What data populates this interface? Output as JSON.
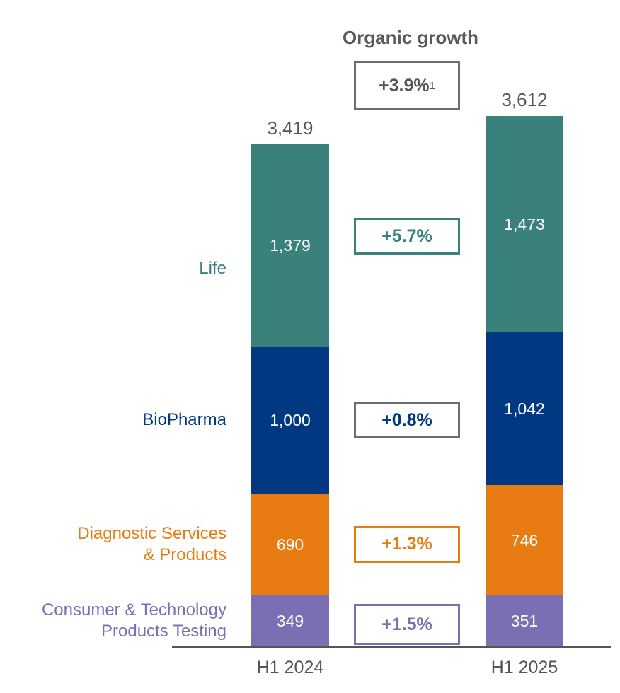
{
  "chart_data": {
    "type": "bar",
    "stacked": true,
    "title": "Organic growth",
    "categories": [
      "H1 2024",
      "H1 2025"
    ],
    "totals": [
      3419,
      3612
    ],
    "totals_labels": [
      "3,419",
      "3,612"
    ],
    "series": [
      {
        "name": "Consumer & Technology Products Testing",
        "label_lines": [
          "Consumer & Technology",
          "Products Testing"
        ],
        "color": "#7b6fb3",
        "values": [
          349,
          351
        ],
        "value_labels": [
          "349",
          "351"
        ],
        "growth": "+1.5%"
      },
      {
        "name": "Diagnostic Services & Products",
        "label_lines": [
          "Diagnostic Services",
          "& Products"
        ],
        "color": "#e87c12",
        "values": [
          690,
          746
        ],
        "value_labels": [
          "690",
          "746"
        ],
        "growth": "+1.3%"
      },
      {
        "name": "BioPharma",
        "label_lines": [
          "BioPharma"
        ],
        "color": "#003882",
        "values": [
          1000,
          1042
        ],
        "value_labels": [
          "1,000",
          "1,042"
        ],
        "growth": "+0.8%"
      },
      {
        "name": "Life",
        "label_lines": [
          "Life"
        ],
        "color": "#3a817c",
        "values": [
          1379,
          1473
        ],
        "value_labels": [
          "1,379",
          "1,473"
        ],
        "growth": "+5.7%"
      }
    ],
    "total_growth": "+3.9%",
    "total_growth_footnote": "1",
    "ylim": [
      0,
      3612
    ]
  }
}
